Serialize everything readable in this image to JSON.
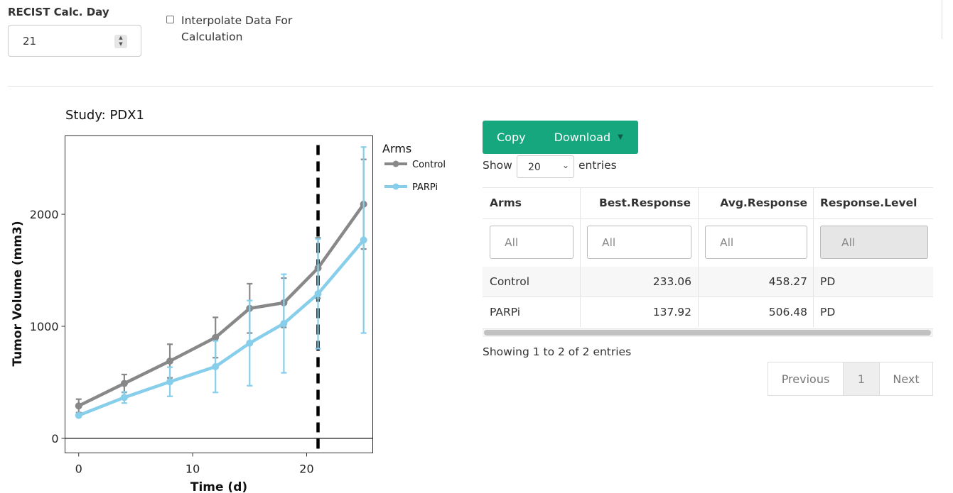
{
  "controls": {
    "recist_label": "RECIST Calc. Day",
    "recist_value": "21",
    "interpolate_label": "Interpolate Data For Calculation",
    "interpolate_checked": false
  },
  "chart_title": "Study: PDX1",
  "chart_data": {
    "type": "line",
    "title": "Study: PDX1",
    "xlabel": "Time (d)",
    "ylabel": "Tumor Volume (mm3)",
    "xlim": [
      -1.2,
      25.8
    ],
    "ylim": [
      -130,
      2700
    ],
    "xticks": [
      0,
      10,
      20
    ],
    "yticks": [
      0,
      1000,
      2000
    ],
    "reference_line_x": 21,
    "legend_title": "Arms",
    "legend_position": "right",
    "grid": false,
    "series": [
      {
        "name": "Control",
        "color": "#888888",
        "x": [
          0,
          4,
          8,
          12,
          15,
          18,
          21,
          25
        ],
        "y": [
          290,
          490,
          690,
          900,
          1160,
          1210,
          1520,
          2090
        ],
        "err": [
          60,
          80,
          150,
          180,
          220,
          220,
          270,
          400
        ]
      },
      {
        "name": "PARPi",
        "color": "#87ceeb",
        "x": [
          0,
          4,
          8,
          12,
          15,
          18,
          21,
          25
        ],
        "y": [
          205,
          365,
          505,
          640,
          850,
          1025,
          1290,
          1770
        ],
        "err": [
          0,
          50,
          130,
          230,
          380,
          440,
          490,
          830
        ]
      }
    ]
  },
  "buttons": {
    "copy": "Copy",
    "download": "Download",
    "caret": "▼"
  },
  "length_menu": {
    "show": "Show",
    "value": "20",
    "entries": "entries"
  },
  "table": {
    "columns": [
      "Arms",
      "Best.Response",
      "Avg.Response",
      "Response.Level"
    ],
    "filter_placeholder": "All",
    "rows": [
      [
        "Control",
        "233.06",
        "458.27",
        "PD"
      ],
      [
        "PARPi",
        "137.92",
        "506.48",
        "PD"
      ]
    ]
  },
  "info": "Showing 1 to 2 of 2 entries",
  "pagination": {
    "previous": "Previous",
    "page": "1",
    "next": "Next"
  }
}
